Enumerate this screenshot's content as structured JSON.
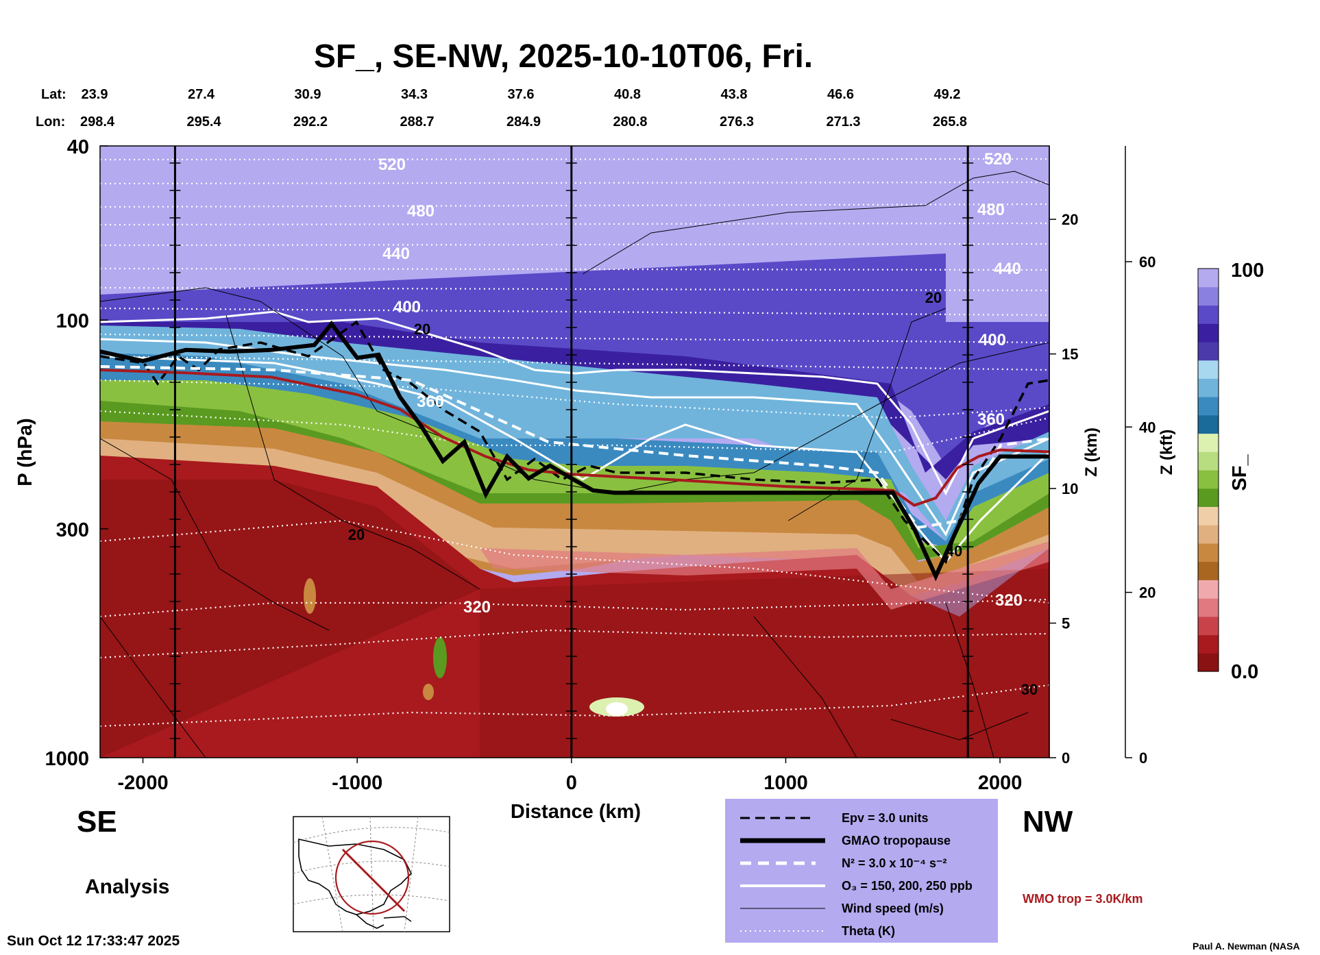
{
  "chart_data": {
    "type": "heatmap",
    "title": "SF_, SE-NW, 2025-10-10T06, Fri.",
    "xlabel": "Distance (km)",
    "ylabel": "P (hPa)",
    "y2label": "Z (km)",
    "y3label": "Z (kft)",
    "colorbar_label": "SF_",
    "xlim": [
      -2200,
      2230
    ],
    "ylim": [
      1000,
      40
    ],
    "x_ticks": [
      {
        "v": -2000,
        "label": "-2000"
      },
      {
        "v": -1000,
        "label": "-1000"
      },
      {
        "v": 0,
        "label": "0"
      },
      {
        "v": 1000,
        "label": "1000"
      },
      {
        "v": 2000,
        "label": "2000"
      }
    ],
    "y_ticks": [
      {
        "v": 40,
        "label": "40"
      },
      {
        "v": 100,
        "label": "100"
      },
      {
        "v": 300,
        "label": "300"
      },
      {
        "v": 1000,
        "label": "1000"
      }
    ],
    "z_km_ticks": [
      {
        "v": 20,
        "label": "20"
      },
      {
        "v": 15,
        "label": "15"
      },
      {
        "v": 10,
        "label": "10"
      },
      {
        "v": 5,
        "label": "5"
      },
      {
        "v": 0,
        "label": "0"
      }
    ],
    "z_kft_ticks": [
      {
        "v": 60,
        "label": "60"
      },
      {
        "v": 40,
        "label": "40"
      },
      {
        "v": 20,
        "label": "20"
      },
      {
        "v": 0,
        "label": "0"
      }
    ],
    "colorbar_range": [
      "0.0",
      "100"
    ],
    "colorbar_colors": [
      "#8b1212",
      "#a81a1e",
      "#c9424a",
      "#e07a80",
      "#f0aaae",
      "#a86620",
      "#c98840",
      "#e0b080",
      "#f0cfa8",
      "#5a9a20",
      "#8ac040",
      "#b8dc80",
      "#dcf0b0",
      "#1a6a9a",
      "#3a8ac0",
      "#70b4dc",
      "#a8d8f0",
      "#4a3aaa",
      "#3a20a0",
      "#5a4ac8",
      "#8a80e0",
      "#b4aaf0"
    ],
    "lat_label": "Lat:",
    "lon_label": "Lon:",
    "geo_ticks": [
      {
        "x": -2200,
        "lat": "23.9",
        "lon": "298.4"
      },
      {
        "x": -1700,
        "lat": "27.4",
        "lon": "295.4"
      },
      {
        "x": -1200,
        "lat": "30.9",
        "lon": "292.2"
      },
      {
        "x": -700,
        "lat": "34.3",
        "lon": "288.7"
      },
      {
        "x": -200,
        "lat": "37.6",
        "lon": "284.9"
      },
      {
        "x": 300,
        "lat": "40.8",
        "lon": "280.8"
      },
      {
        "x": 800,
        "lat": "43.8",
        "lon": "276.3"
      },
      {
        "x": 1300,
        "lat": "46.6",
        "lon": "271.3"
      },
      {
        "x": 1800,
        "lat": "49.2",
        "lon": "265.8"
      }
    ],
    "vertical_markers_km": [
      -1850,
      0,
      1850
    ],
    "theta_levels_K": [
      {
        "K": 520,
        "label": "520"
      },
      {
        "K": 480,
        "label": "480"
      },
      {
        "K": 440,
        "label": "440"
      },
      {
        "K": 400,
        "label": "400"
      },
      {
        "K": 360,
        "label": "360"
      },
      {
        "K": 320,
        "label": "320"
      }
    ],
    "wind_labels": [
      "20",
      "20",
      "20",
      "40",
      "30"
    ],
    "gmao_tropopause_hPa": {
      "x": [
        -2200,
        -2000,
        -1800,
        -1600,
        -1400,
        -1200,
        -1120,
        -1000,
        -900,
        -800,
        -700,
        -600,
        -500,
        -400,
        -300,
        -200,
        -100,
        0,
        100,
        200,
        500,
        1000,
        1500,
        1600,
        1700,
        1800,
        1900,
        2000,
        2230
      ],
      "p": [
        118,
        124,
        117,
        118,
        117,
        114,
        102,
        122,
        120,
        150,
        175,
        210,
        190,
        250,
        205,
        230,
        215,
        230,
        245,
        248,
        248,
        248,
        248,
        300,
        385,
        300,
        236,
        205,
        205
      ]
    },
    "wmo_tropopause_hPa": {
      "x": [
        -2200,
        -1800,
        -1400,
        -1000,
        -800,
        -600,
        -400,
        -200,
        0,
        500,
        1000,
        1500,
        1600,
        1700,
        1800,
        1900,
        2000,
        2230
      ],
      "p": [
        130,
        132,
        135,
        148,
        160,
        185,
        205,
        220,
        225,
        232,
        240,
        245,
        265,
        255,
        218,
        205,
        198,
        200
      ]
    }
  },
  "labels": {
    "se": "SE",
    "nw": "NW",
    "analysis": "Analysis",
    "timestamp": "Sun Oct 12 17:33:47 2025",
    "credit": "Paul A. Newman (NASA",
    "wmo_note": "WMO trop = 3.0K/km"
  },
  "legend": {
    "items": [
      {
        "label": "Epv = 3.0 units"
      },
      {
        "label": "GMAO tropopause"
      },
      {
        "label": "N² = 3.0 x 10⁻⁴ s⁻²"
      },
      {
        "label": "O₃ = 150, 200, 250 ppb"
      },
      {
        "label": "Wind speed (m/s)"
      },
      {
        "label": "Theta (K)"
      }
    ],
    "bg_color": "#b4aaf0"
  }
}
